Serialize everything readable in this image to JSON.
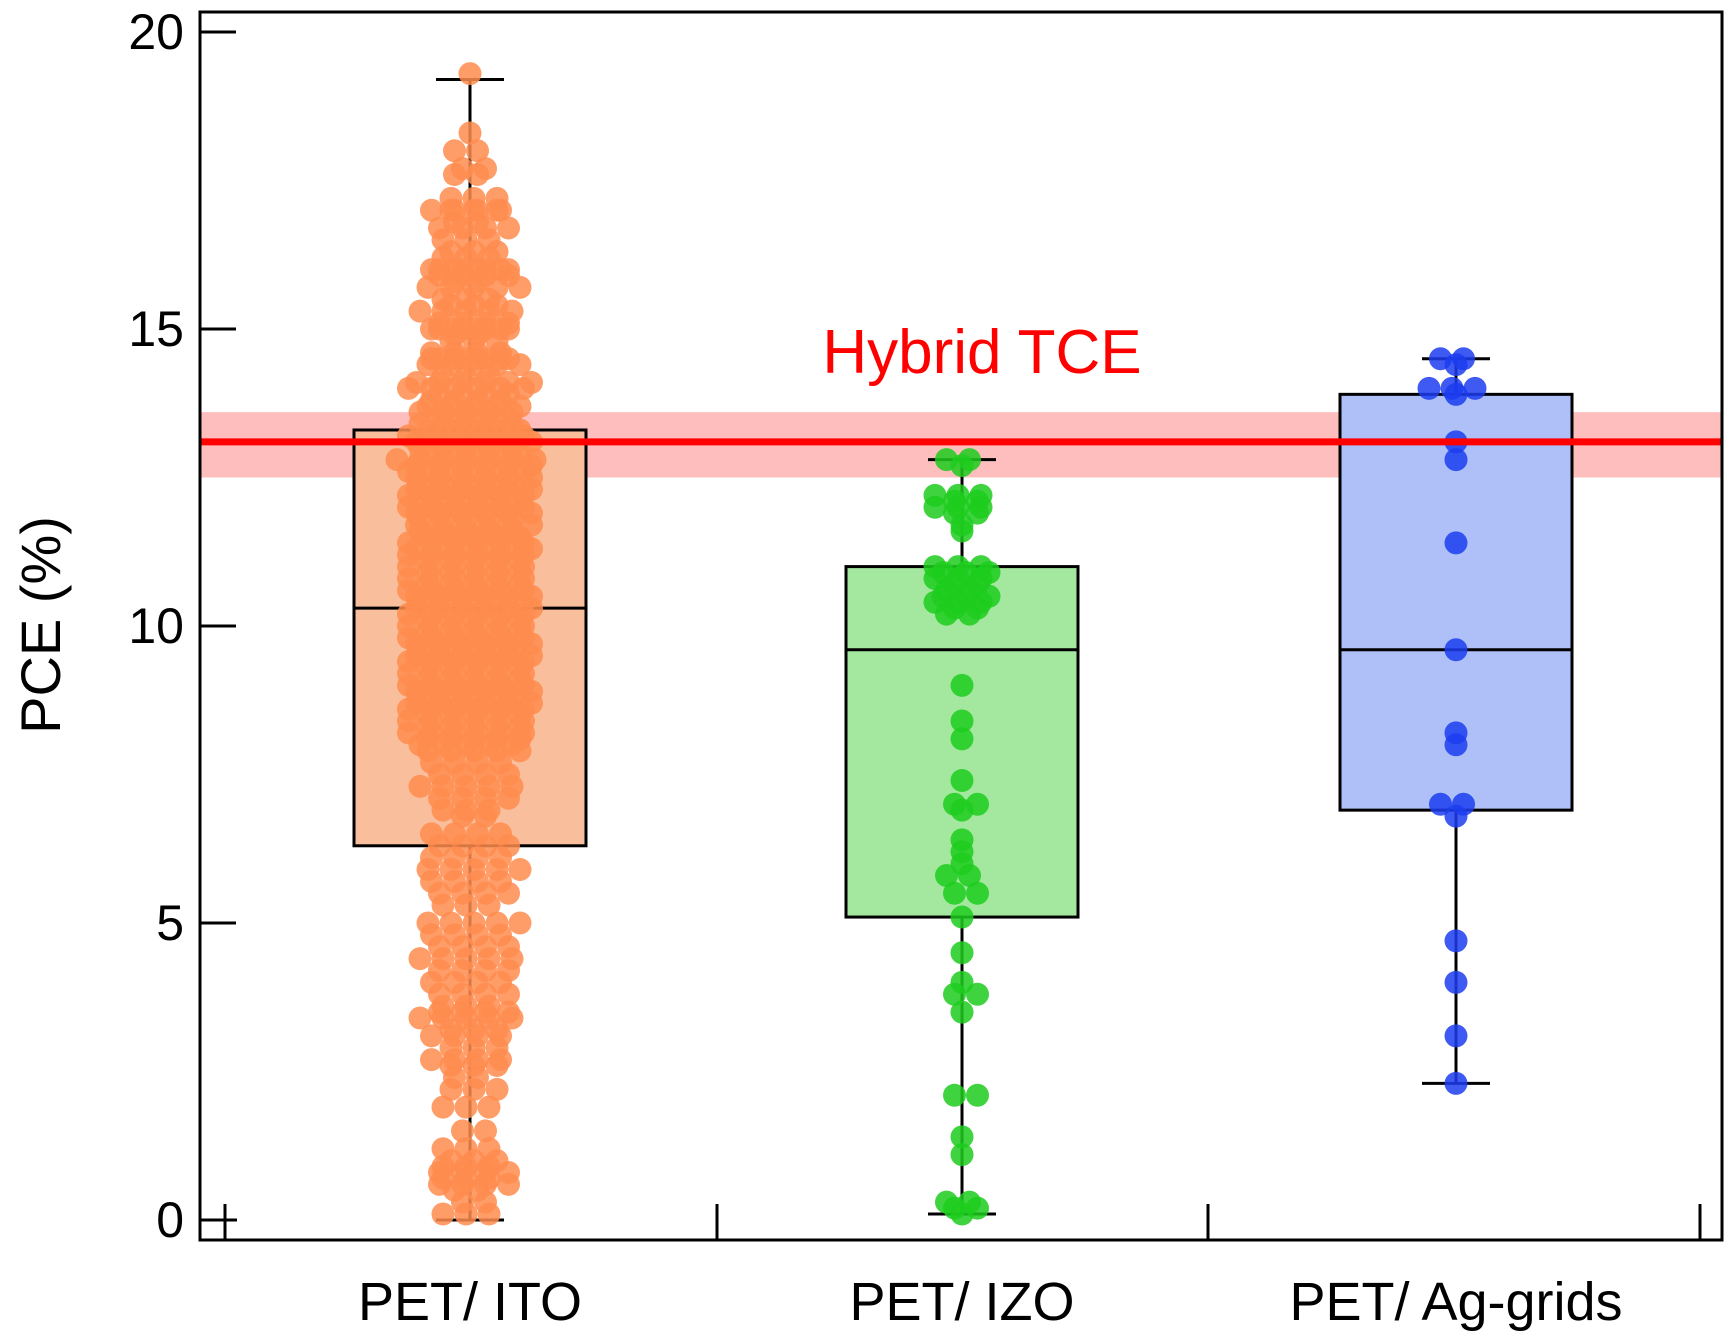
{
  "chart_data": {
    "type": "box",
    "ylabel": "PCE (%)",
    "xlabel": "",
    "ylim": [
      0,
      20
    ],
    "yticks": [
      0,
      5,
      10,
      15,
      20
    ],
    "grid": false,
    "categories": [
      "PET/ ITO",
      "PET/ IZO",
      "PET/ Ag-grids"
    ],
    "series": [
      {
        "name": "PET/ ITO",
        "color": "#ff8c4f",
        "box_fill": "#f9bf9c",
        "whisker_low": 0.0,
        "q1": 6.3,
        "median": 10.3,
        "q3": 13.3,
        "whisker_high": 19.2,
        "points": [
          19.3,
          18.3,
          18.0,
          17.7,
          17.6,
          17.2,
          17.0,
          17.0,
          16.8,
          16.7,
          16.5,
          16.3,
          16.2,
          16.0,
          16.0,
          15.9,
          15.8,
          15.7,
          15.5,
          15.4,
          15.3,
          15.1,
          15.0,
          15.0,
          14.9,
          14.8,
          14.6,
          14.5,
          14.5,
          14.4,
          14.2,
          14.1,
          14.0,
          13.9,
          13.8,
          13.7,
          13.6,
          13.5,
          13.4,
          13.3,
          13.2,
          13.1,
          13.0,
          12.9,
          12.8,
          12.7,
          12.6,
          12.5,
          12.4,
          12.3,
          12.2,
          12.1,
          12.0,
          11.9,
          11.8,
          11.7,
          11.6,
          11.5,
          11.4,
          11.3,
          11.2,
          11.1,
          11.0,
          10.9,
          10.8,
          10.7,
          10.6,
          10.5,
          10.4,
          10.3,
          10.2,
          10.1,
          10.0,
          9.9,
          9.8,
          9.7,
          9.6,
          9.5,
          9.4,
          9.3,
          9.2,
          9.1,
          9.0,
          8.9,
          8.8,
          8.7,
          8.6,
          8.5,
          8.4,
          8.3,
          8.2,
          8.1,
          8.0,
          7.9,
          7.7,
          7.5,
          7.3,
          7.1,
          6.9,
          6.8,
          6.5,
          6.3,
          6.1,
          5.9,
          5.7,
          5.5,
          5.3,
          5.0,
          4.8,
          4.6,
          4.4,
          4.2,
          4.0,
          3.8,
          3.6,
          3.5,
          3.4,
          3.2,
          3.1,
          2.9,
          2.7,
          2.6,
          2.4,
          2.2,
          1.9,
          1.5,
          1.2,
          1.0,
          0.9,
          0.8,
          0.7,
          0.6,
          0.5,
          0.3,
          0.1
        ],
        "point_counts": [
          1,
          1,
          2,
          2,
          2,
          3,
          4,
          3,
          2,
          4,
          3,
          3,
          3,
          4,
          4,
          4,
          2,
          5,
          3,
          3,
          5,
          4,
          4,
          4,
          2,
          3,
          4,
          4,
          4,
          5,
          3,
          6,
          6,
          4,
          4,
          5,
          5,
          4,
          5,
          5,
          6,
          6,
          5,
          5,
          7,
          6,
          6,
          6,
          5,
          6,
          6,
          5,
          6,
          6,
          5,
          6,
          5,
          5,
          6,
          6,
          6,
          5,
          6,
          5,
          6,
          5,
          6,
          6,
          5,
          6,
          6,
          5,
          6,
          5,
          6,
          6,
          5,
          6,
          6,
          5,
          6,
          5,
          6,
          6,
          5,
          6,
          6,
          5,
          6,
          5,
          6,
          5,
          5,
          5,
          4,
          4,
          5,
          4,
          3,
          2,
          4,
          4,
          4,
          5,
          4,
          4,
          3,
          5,
          4,
          4,
          5,
          4,
          4,
          4,
          3,
          4,
          5,
          3,
          4,
          3,
          4,
          3,
          2,
          3,
          3,
          2,
          3,
          3,
          3,
          4,
          3,
          4,
          2,
          2,
          3
        ]
      },
      {
        "name": "PET/ IZO",
        "color": "#1dcc1d",
        "box_fill": "#a4e8a0",
        "whisker_low": 0.1,
        "q1": 5.1,
        "median": 9.6,
        "q3": 11.0,
        "whisker_high": 12.8,
        "points": [
          12.8,
          12.7,
          12.2,
          12.1,
          12.0,
          11.9,
          11.7,
          11.6,
          11.0,
          10.9,
          10.8,
          10.7,
          10.6,
          10.5,
          10.4,
          10.3,
          10.2,
          9.0,
          8.4,
          8.1,
          7.4,
          7.0,
          6.9,
          6.4,
          6.2,
          6.0,
          5.8,
          5.5,
          5.1,
          4.5,
          4.0,
          3.8,
          3.5,
          2.1,
          1.4,
          1.1,
          0.3,
          0.2,
          0.1
        ],
        "point_counts": [
          2,
          1,
          3,
          2,
          3,
          2,
          1,
          1,
          3,
          3,
          3,
          2,
          2,
          3,
          3,
          2,
          2,
          1,
          1,
          1,
          1,
          2,
          1,
          1,
          1,
          1,
          2,
          2,
          1,
          1,
          1,
          2,
          1,
          2,
          1,
          1,
          2,
          2,
          1
        ]
      },
      {
        "name": "PET/ Ag-grids",
        "color": "#1c3df0",
        "box_fill": "#aec0f7",
        "whisker_low": 2.3,
        "q1": 6.9,
        "median": 9.6,
        "q3": 13.9,
        "whisker_high": 14.5,
        "points": [
          14.5,
          14.4,
          14.0,
          13.9,
          13.1,
          12.8,
          11.4,
          9.6,
          8.2,
          8.0,
          7.0,
          6.8,
          4.7,
          4.0,
          3.1,
          2.3
        ],
        "point_counts": [
          2,
          1,
          3,
          1,
          1,
          1,
          1,
          1,
          1,
          1,
          2,
          1,
          1,
          1,
          1,
          1
        ]
      }
    ],
    "reference_band": {
      "label": "Hybrid TCE",
      "value": 13.1,
      "band": [
        12.5,
        13.6
      ],
      "line_color": "#ff0000",
      "band_color": "#ffb3b3"
    }
  }
}
